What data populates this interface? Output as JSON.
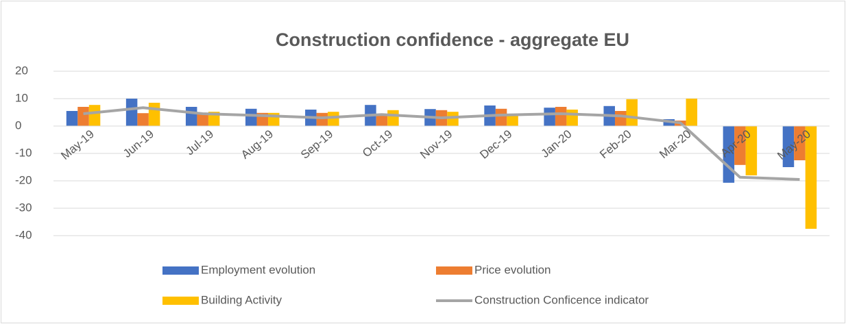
{
  "chart_data": {
    "type": "bar-line",
    "title": "Construction confidence - aggregate EU",
    "categories": [
      "May-19",
      "Jun-19",
      "Jul-19",
      "Aug-19",
      "Sep-19",
      "Oct-19",
      "Nov-19",
      "Dec-19",
      "Jan-20",
      "Feb-20",
      "Mar-20",
      "Apr-20",
      "May-20"
    ],
    "series": [
      {
        "name": "Employment evolution",
        "color": "#4472c4",
        "type": "bar",
        "values": [
          5.5,
          10,
          7,
          6.3,
          6,
          7.7,
          6.2,
          7.5,
          6.7,
          7.3,
          2.5,
          -20.7,
          -15
        ]
      },
      {
        "name": "Price evolution",
        "color": "#ed7d31",
        "type": "bar",
        "values": [
          7,
          4.7,
          4.5,
          4.8,
          4.8,
          4.5,
          5.8,
          6.3,
          7,
          5.5,
          2,
          -14.2,
          -12.5
        ]
      },
      {
        "name": "Building Activity",
        "color": "#ffc000",
        "type": "bar",
        "values": [
          7.7,
          8.5,
          5.2,
          4.8,
          5.2,
          5.8,
          5.2,
          4,
          6,
          9.8,
          10,
          -18,
          -37.5
        ]
      },
      {
        "name": "Construction Conficence indicator",
        "color": "#a5a5a5",
        "type": "line",
        "values": [
          4.5,
          6.7,
          4.5,
          3.8,
          3,
          4.2,
          3,
          4,
          4.5,
          3.7,
          1.2,
          -18.7,
          -19.5
        ]
      }
    ],
    "ylim": [
      -40,
      20
    ],
    "yticks": [
      -40,
      -30,
      -20,
      -10,
      0,
      10,
      20
    ],
    "grid": true,
    "legend": "bottom"
  }
}
